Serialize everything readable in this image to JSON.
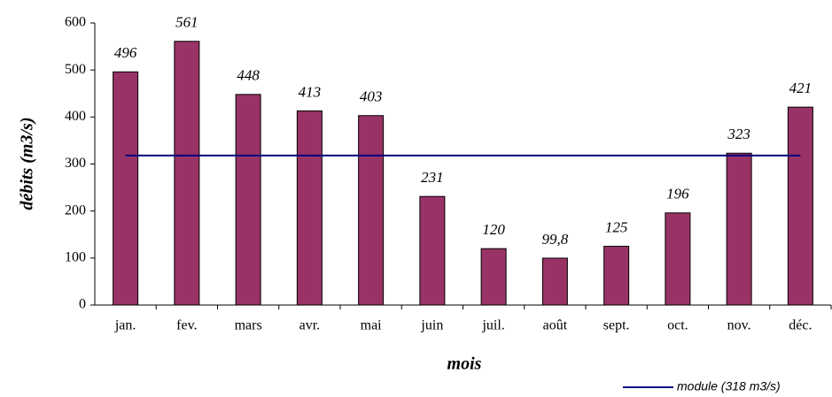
{
  "chart_data": {
    "type": "bar",
    "categories": [
      "jan.",
      "fev.",
      "mars",
      "avr.",
      "mai",
      "juin",
      "juil.",
      "août",
      "sept.",
      "oct.",
      "nov.",
      "déc."
    ],
    "values": [
      496,
      561,
      448,
      413,
      403,
      231,
      120,
      99.8,
      125,
      196,
      323,
      421
    ],
    "value_labels": [
      "496",
      "561",
      "448",
      "413",
      "403",
      "231",
      "120",
      "99,8",
      "125",
      "196",
      "323",
      "421"
    ],
    "color": "#993366",
    "ylim": [
      0,
      600
    ],
    "yticks": [
      0,
      100,
      200,
      300,
      400,
      500,
      600
    ],
    "xlabel": "mois",
    "ylabel": "débits (m3/s)",
    "reference_line": {
      "name": "module (318 m3/s)",
      "value": 318,
      "color": "#000080"
    },
    "legend": "bottom-right"
  }
}
